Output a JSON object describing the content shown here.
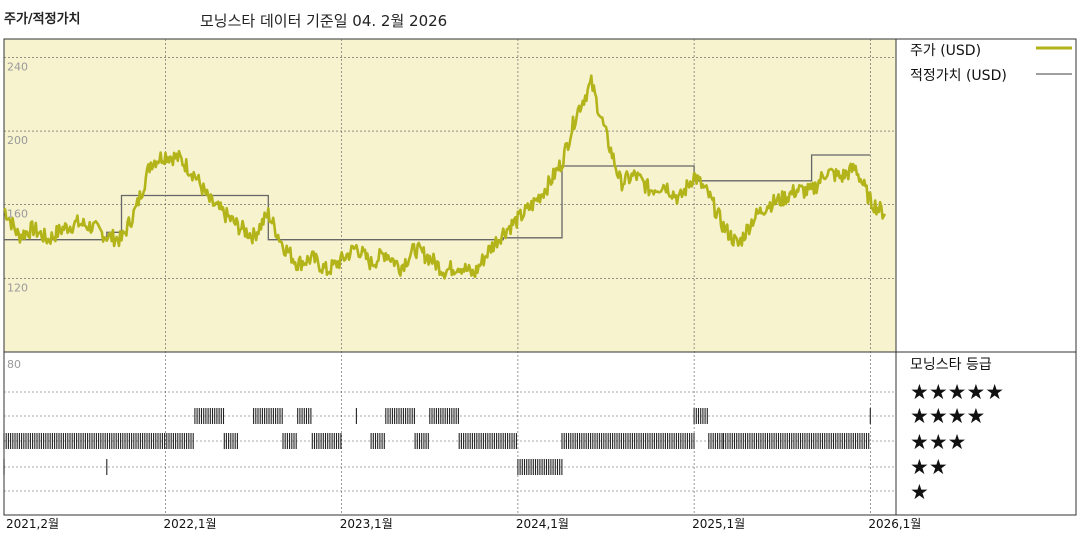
{
  "header": {
    "title": "주가/적정가치",
    "subtitle": "모닝스타 데이터 기준일 04. 2월 2026"
  },
  "chart_data": {
    "type": "line",
    "x_start": "2021-02",
    "x_end": "2026-02",
    "y_ticks": [
      "240",
      "200",
      "160",
      "120",
      "80"
    ],
    "y_tick_values": [
      240,
      200,
      160,
      120,
      80
    ],
    "ylim": [
      80,
      240
    ],
    "x_ticks": [
      {
        "label": "2021,2월",
        "x": "2021-02"
      },
      {
        "label": "2022,1월",
        "x": "2022-01"
      },
      {
        "label": "2023,1월",
        "x": "2023-01"
      },
      {
        "label": "2024,1월",
        "x": "2024-01"
      },
      {
        "label": "2025,1월",
        "x": "2025-01"
      },
      {
        "label": "2026,1월",
        "x": "2026-01"
      }
    ],
    "legend": {
      "price_label": "주가 (USD)",
      "fair_value_label": "적정가치 (USD)"
    },
    "colors": {
      "price": "#b3b41a",
      "fair_value": "#666666",
      "panel": "#f7f3cf"
    },
    "series": [
      {
        "name": "주가 (USD)",
        "points": [
          [
            "2021-02",
            158
          ],
          [
            "2021-03",
            143
          ],
          [
            "2021-04",
            147
          ],
          [
            "2021-05",
            141
          ],
          [
            "2021-06",
            147
          ],
          [
            "2021-07",
            150
          ],
          [
            "2021-08",
            148
          ],
          [
            "2021-09",
            143
          ],
          [
            "2021-10",
            141
          ],
          [
            "2021-11",
            158
          ],
          [
            "2021-12",
            183
          ],
          [
            "2022-01",
            187
          ],
          [
            "2022-02",
            185
          ],
          [
            "2022-03",
            176
          ],
          [
            "2022-04",
            162
          ],
          [
            "2022-05",
            155
          ],
          [
            "2022-06",
            148
          ],
          [
            "2022-07",
            143
          ],
          [
            "2022-08",
            155
          ],
          [
            "2022-09",
            138
          ],
          [
            "2022-10",
            128
          ],
          [
            "2022-11",
            131
          ],
          [
            "2022-12",
            124
          ],
          [
            "2023-01",
            130
          ],
          [
            "2023-02",
            137
          ],
          [
            "2023-03",
            128
          ],
          [
            "2023-04",
            134
          ],
          [
            "2023-05",
            126
          ],
          [
            "2023-06",
            136
          ],
          [
            "2023-07",
            131
          ],
          [
            "2023-08",
            124
          ],
          [
            "2023-09",
            127
          ],
          [
            "2023-10",
            122
          ],
          [
            "2023-11",
            135
          ],
          [
            "2023-12",
            145
          ],
          [
            "2024-01",
            152
          ],
          [
            "2024-02",
            160
          ],
          [
            "2024-03",
            170
          ],
          [
            "2024-04",
            183
          ],
          [
            "2024-05",
            210
          ],
          [
            "2024-06",
            226
          ],
          [
            "2024-07",
            198
          ],
          [
            "2024-08",
            172
          ],
          [
            "2024-09",
            176
          ],
          [
            "2024-10",
            168
          ],
          [
            "2024-11",
            171
          ],
          [
            "2024-12",
            163
          ],
          [
            "2025-01",
            176
          ],
          [
            "2025-02",
            165
          ],
          [
            "2025-03",
            148
          ],
          [
            "2025-04",
            138
          ],
          [
            "2025-05",
            152
          ],
          [
            "2025-06",
            160
          ],
          [
            "2025-07",
            163
          ],
          [
            "2025-08",
            168
          ],
          [
            "2025-09",
            167
          ],
          [
            "2025-10",
            178
          ],
          [
            "2025-11",
            175
          ],
          [
            "2025-12",
            180
          ],
          [
            "2026-01",
            162
          ],
          [
            "2026-02",
            155
          ]
        ]
      },
      {
        "name": "적정가치 (USD)",
        "points": [
          [
            "2021-02",
            141
          ],
          [
            "2021-09",
            141
          ],
          [
            "2021-09",
            145
          ],
          [
            "2021-10",
            145
          ],
          [
            "2021-10",
            165
          ],
          [
            "2022-08",
            165
          ],
          [
            "2022-08",
            141
          ],
          [
            "2023-12",
            141
          ],
          [
            "2023-12",
            142
          ],
          [
            "2024-04",
            142
          ],
          [
            "2024-04",
            181
          ],
          [
            "2025-01",
            181
          ],
          [
            "2025-01",
            173
          ],
          [
            "2025-09",
            173
          ],
          [
            "2025-09",
            187
          ],
          [
            "2026-01",
            187
          ]
        ]
      }
    ],
    "rating_legend": {
      "title": "모닝스타 등급",
      "stars": [
        "★★★★★",
        "★★★★",
        "★★★",
        "★★",
        "★"
      ]
    },
    "ratings": [
      {
        "stars": 3,
        "from": "2021-02",
        "to": "2022-03"
      },
      {
        "stars": 2,
        "from": "2021-02",
        "to": "2021-02"
      },
      {
        "stars": 2,
        "from": "2021-09",
        "to": "2021-09"
      },
      {
        "stars": 4,
        "from": "2022-03",
        "to": "2022-05"
      },
      {
        "stars": 3,
        "from": "2022-05",
        "to": "2022-06"
      },
      {
        "stars": 4,
        "from": "2022-07",
        "to": "2022-09"
      },
      {
        "stars": 3,
        "from": "2022-09",
        "to": "2022-10"
      },
      {
        "stars": 4,
        "from": "2022-10",
        "to": "2022-11"
      },
      {
        "stars": 3,
        "from": "2022-11",
        "to": "2023-01"
      },
      {
        "stars": 4,
        "from": "2023-02",
        "to": "2023-02"
      },
      {
        "stars": 3,
        "from": "2023-03",
        "to": "2023-04"
      },
      {
        "stars": 4,
        "from": "2023-04",
        "to": "2023-06"
      },
      {
        "stars": 3,
        "from": "2023-06",
        "to": "2023-07"
      },
      {
        "stars": 4,
        "from": "2023-07",
        "to": "2023-09"
      },
      {
        "stars": 3,
        "from": "2023-09",
        "to": "2024-01"
      },
      {
        "stars": 2,
        "from": "2024-01",
        "to": "2024-04"
      },
      {
        "stars": 3,
        "from": "2024-04",
        "to": "2025-01"
      },
      {
        "stars": 4,
        "from": "2025-01",
        "to": "2025-02"
      },
      {
        "stars": 3,
        "from": "2025-02",
        "to": "2025-03"
      },
      {
        "stars": 3,
        "from": "2025-03",
        "to": "2026-01"
      },
      {
        "stars": 4,
        "from": "2026-01",
        "to": "2026-01"
      }
    ]
  }
}
